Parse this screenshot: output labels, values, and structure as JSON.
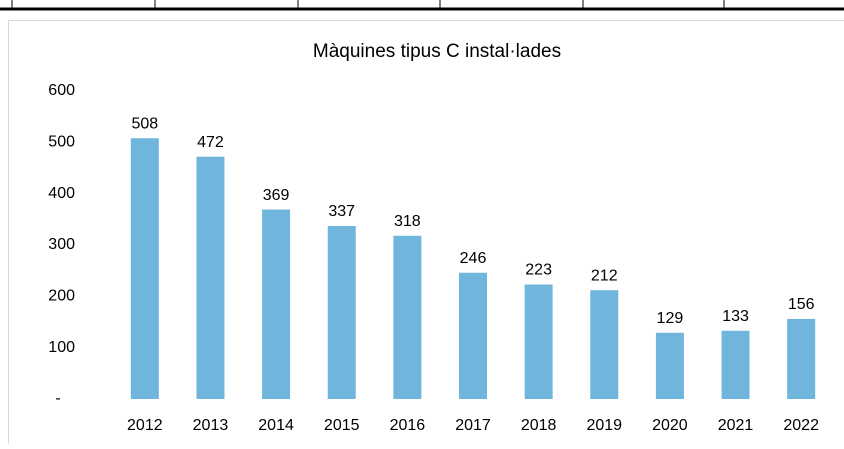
{
  "chart_data": {
    "type": "bar",
    "title": "Màquines tipus C instal·lades",
    "categories": [
      "2012",
      "2013",
      "2014",
      "2015",
      "2016",
      "2017",
      "2018",
      "2019",
      "2020",
      "2021",
      "2022"
    ],
    "values": [
      508,
      472,
      369,
      337,
      318,
      246,
      223,
      212,
      129,
      133,
      156
    ],
    "color": "#70b6dc",
    "ylim": [
      0,
      600
    ],
    "yticks": [
      {
        "value": 0,
        "label": "-"
      },
      100,
      200,
      300,
      400,
      500,
      600
    ],
    "grid": false
  }
}
